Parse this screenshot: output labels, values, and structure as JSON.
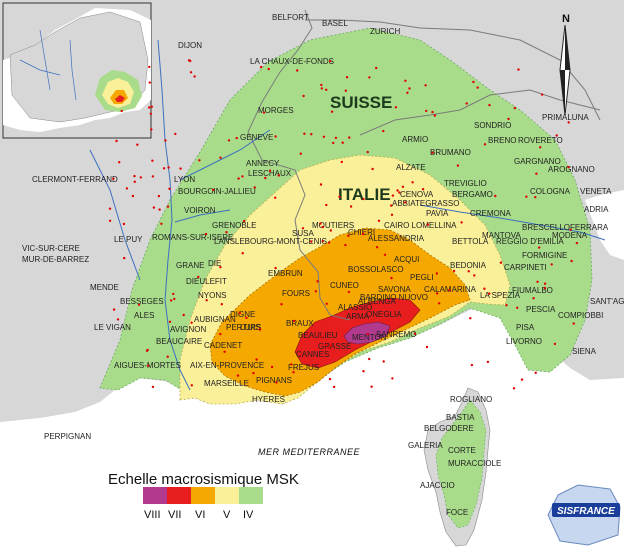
{
  "map": {
    "sea_label": "MER MEDITERRANEE",
    "region_labels": [
      "SUISSE",
      "ITALIE"
    ],
    "cities": [
      "BELFORT",
      "BASEL",
      "ZURICH",
      "DIJON",
      "LA CHAUX-DE-FONDS",
      "MORGES",
      "GENEVE",
      "ANNECY",
      "LESCHAUX",
      "CLERMONT-FERRAND",
      "LYON",
      "BOURGOIN-JALLIEU",
      "VOIRON",
      "GRENOBLE",
      "ROMANS-SUR-ISERE",
      "VIC-SUR-CERE",
      "MUR-DE-BARREZ",
      "LE PUY",
      "MOUTIERS",
      "LANSLEBOURG-MONT-CENIS",
      "SUSA",
      "MENDE",
      "GRANE",
      "DIE",
      "DIEULEFIT",
      "NYONS",
      "EMBRUN",
      "BESSEGES",
      "ALES",
      "LE VIGAN",
      "AUBIGNAN",
      "AVIGNON",
      "BEAUCAIRE",
      "CADENET",
      "AIGUES-MORTES",
      "AIX-EN-PROVENCE",
      "MARSEILLE",
      "PIGNANS",
      "HYERES",
      "DIGNE",
      "LURS",
      "FOURS",
      "BRAUX",
      "GRASSE",
      "FREJUS",
      "CANNES",
      "BEAULIEU",
      "MENTON",
      "SANREMO",
      "ONEGLIA",
      "ALASSIO",
      "ARMA",
      "PERTUIS",
      "CUNEO",
      "ALBENGA",
      "SAVONA",
      "BARDINO NUOVO",
      "BOSSOLASCO",
      "ACQUI",
      "CHIERI",
      "ALESSANDRIA",
      "CAIRO LOMELLINA",
      "PAVIA",
      "ABBIATEGRASSO",
      "BERGAMO",
      "BRUMANO",
      "ARMIO",
      "ALZATE",
      "TREVIGLIO",
      "CREMONA",
      "MANTOVA",
      "BETTOLA",
      "BEDONIA",
      "REGGIO D'EMILIA",
      "FORMIGINE",
      "CARPINETI",
      "FIUMALBO",
      "PESCIA",
      "LA SPEZIA",
      "LIVORNO",
      "PISA",
      "SONDRIO",
      "BRENO",
      "ROVERETO",
      "GARGNANO",
      "AROGNANO",
      "VENETA",
      "COLOGNA",
      "BRESCELLO",
      "MODENA",
      "ADRIA",
      "FERRARA",
      "COMPIOBBI",
      "SANT'AG",
      "SIENA",
      "PRIMALUNA",
      "CENOVA",
      "PEGLI",
      "CALAMARINA",
      "PERPIGNAN",
      "ROGLIANO",
      "BASTIA",
      "BELGODERE",
      "GALERIA",
      "CORTE",
      "MURACCIOLE",
      "AJACCIO",
      "FOCE"
    ]
  },
  "legend": {
    "title": "Echelle macrosismique MSK",
    "items": [
      {
        "label": "VIII",
        "color": "#b23a8e"
      },
      {
        "label": "VII",
        "color": "#e81e1e"
      },
      {
        "label": "VI",
        "color": "#f5a800"
      },
      {
        "label": "V",
        "color": "#faf099"
      },
      {
        "label": "IV",
        "color": "#a8dc8a"
      }
    ]
  },
  "logo": {
    "text": "SISFRANCE"
  },
  "inset": {
    "label": "overview"
  },
  "compass": {
    "label": "N"
  },
  "colors": {
    "land": "#d7d7d7",
    "sea": "#ffffff",
    "border": "#7a7a7a",
    "river": "#3c6fbf",
    "point": "#e00000"
  }
}
